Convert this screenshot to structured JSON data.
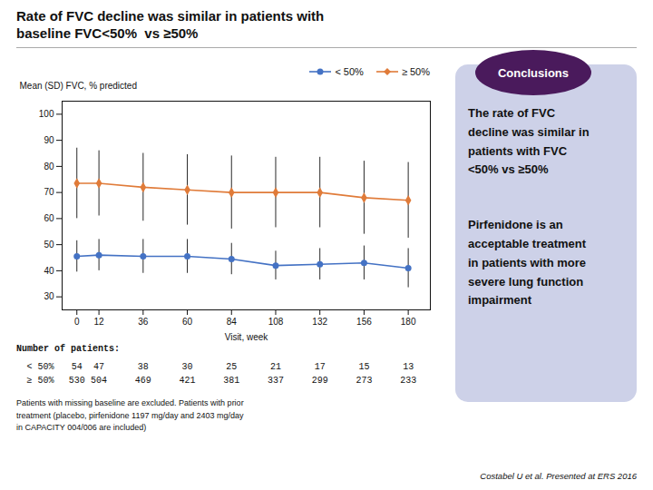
{
  "chart_data": {
    "type": "line",
    "title": "Rate of FVC decline was similar in patients with\nbaseline FVC<50%  vs ≥50%",
    "xlabel": "Visit, week",
    "ylabel": "Mean (SD) FVC, % predicted",
    "x": [
      0,
      12,
      36,
      60,
      84,
      108,
      132,
      156,
      180
    ],
    "xlim": [
      -8,
      192
    ],
    "xticks": [
      0,
      12,
      36,
      60,
      84,
      108,
      132,
      156,
      180
    ],
    "ylim": [
      25,
      105
    ],
    "yticks": [
      30,
      40,
      50,
      60,
      70,
      80,
      90,
      100
    ],
    "grid": false,
    "legend": "upper right",
    "series": [
      {
        "name": "< 50%",
        "color": "#4472c4",
        "marker": "circle",
        "values": [
          45.5,
          46.0,
          45.5,
          45.5,
          44.5,
          42.0,
          42.5,
          43.0,
          41.0
        ],
        "sd": [
          6.0,
          6.0,
          6.5,
          6.5,
          6.0,
          5.5,
          6.0,
          6.5,
          7.5
        ],
        "n": [
          54,
          47,
          38,
          30,
          25,
          21,
          17,
          15,
          13
        ]
      },
      {
        "name": "≥ 50%",
        "color": "#e07b39",
        "marker": "diamond",
        "values": [
          73.5,
          73.5,
          72.0,
          71.0,
          70.0,
          70.0,
          70.0,
          68.0,
          67.0
        ],
        "sd": [
          13.5,
          12.5,
          13.0,
          13.5,
          14.0,
          13.5,
          13.5,
          14.0,
          14.5
        ],
        "n": [
          530,
          504,
          469,
          421,
          381,
          337,
          299,
          273,
          233
        ]
      }
    ],
    "number_of_patients_label": "Number of patients:",
    "footnote": "Patients with missing baseline are excluded. Patients with prior\ntreatment (placebo, pirfenidone 1197 mg/day and 2403 mg/day\nin CAPACITY 004/006 are included)",
    "citation": "Costabel U et al. Presented at ERS 2016",
    "conclusions": {
      "title": "Conclusions",
      "texts": [
        "The rate of FVC\ndecline was similar in\npatients with FVC\n<50% vs ≥50%",
        "Pirfenidone is an\nacceptable treatment\nin patients with more\nsevere lung function\nimpairment"
      ],
      "colors": [
        "#cdd1e8",
        "#4a1a5c"
      ]
    }
  }
}
